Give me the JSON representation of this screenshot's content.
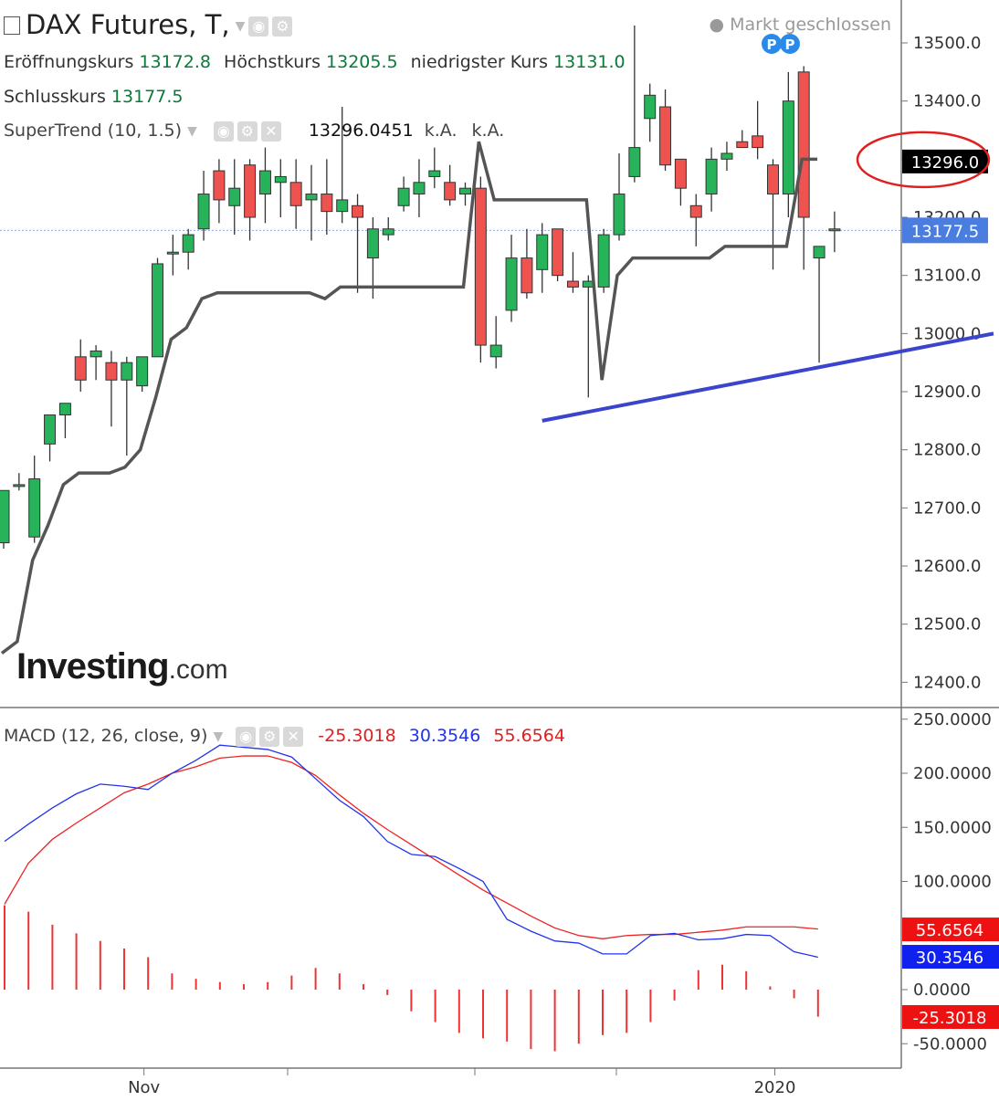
{
  "header": {
    "title": "DAX Futures, T,",
    "status": "Markt geschlossen",
    "open_label": "Eröffnungskurs",
    "open_value": "13172.8",
    "high_label": "Höchstkurs",
    "high_value": "13205.5",
    "low_label": "niedrigster Kurs",
    "low_value": "13131.0",
    "close_label": "Schlusskurs",
    "close_value": "13177.5"
  },
  "supertrend": {
    "label": "SuperTrend (10, 1.5)",
    "value": "13296.0451",
    "na1": "k.A.",
    "na2": "k.A."
  },
  "macd_legend": {
    "label": "MACD (12, 26, close, 9)",
    "hist": "-25.3018",
    "macd": "30.3546",
    "signal": "55.6564"
  },
  "logo": {
    "main": "Investing",
    "suffix": ".com"
  },
  "colors": {
    "up": "#26b35a",
    "down": "#ef5350",
    "supertrend": "#555555",
    "macd_line": "#2233ee",
    "signal_line": "#ee2222",
    "trendline": "#3a44cc",
    "last_price_tag": "#4a7de0"
  },
  "icons": [
    "collapse-icon",
    "eye-icon",
    "gear-icon",
    "close-icon",
    "pivot-marker"
  ],
  "pivot_markers": [
    "P",
    "P"
  ],
  "chart_data": [
    {
      "type": "candlestick",
      "ylim": [
        12350,
        13570
      ],
      "yticks": [
        "13500.0",
        "13400.0",
        "13300.0",
        "13200.0",
        "13100.0",
        "13000.0",
        "12900.0",
        "12800.0",
        "12700.0",
        "12600.0",
        "12500.0",
        "12400.0"
      ],
      "xticks": [
        {
          "index": 9,
          "label": "Nov"
        },
        {
          "index": 50,
          "label": "2020"
        }
      ],
      "candles": [
        [
          12640,
          12730,
          12630,
          12730
        ],
        [
          12740,
          12760,
          12730,
          12740
        ],
        [
          12650,
          12790,
          12640,
          12750
        ],
        [
          12810,
          12850,
          12780,
          12860
        ],
        [
          12860,
          12880,
          12820,
          12880
        ],
        [
          12960,
          12990,
          12900,
          12920
        ],
        [
          12960,
          12980,
          12920,
          12970
        ],
        [
          12950,
          12970,
          12840,
          12920
        ],
        [
          12920,
          12960,
          12790,
          12950
        ],
        [
          12910,
          12960,
          12900,
          12960
        ],
        [
          12960,
          13130,
          12960,
          13120
        ],
        [
          13140,
          13170,
          13100,
          13140
        ],
        [
          13140,
          13180,
          13110,
          13170
        ],
        [
          13180,
          13280,
          13160,
          13240
        ],
        [
          13280,
          13300,
          13190,
          13230
        ],
        [
          13220,
          13300,
          13170,
          13250
        ],
        [
          13290,
          13300,
          13160,
          13200
        ],
        [
          13240,
          13320,
          13190,
          13280
        ],
        [
          13260,
          13300,
          13200,
          13270
        ],
        [
          13260,
          13300,
          13180,
          13220
        ],
        [
          13230,
          13290,
          13160,
          13240
        ],
        [
          13240,
          13300,
          13170,
          13210
        ],
        [
          13210,
          13390,
          13190,
          13230
        ],
        [
          13220,
          13240,
          13070,
          13200
        ],
        [
          13130,
          13200,
          13060,
          13180
        ],
        [
          13170,
          13200,
          13160,
          13180
        ],
        [
          13220,
          13270,
          13210,
          13250
        ],
        [
          13240,
          13300,
          13200,
          13260
        ],
        [
          13270,
          13320,
          13250,
          13280
        ],
        [
          13260,
          13290,
          13220,
          13230
        ],
        [
          13240,
          13260,
          13220,
          13250
        ],
        [
          13250,
          13270,
          12950,
          12980
        ],
        [
          12960,
          13030,
          12940,
          12980
        ],
        [
          13040,
          13170,
          13020,
          13130
        ],
        [
          13130,
          13180,
          13060,
          13070
        ],
        [
          13110,
          13190,
          13070,
          13170
        ],
        [
          13180,
          13180,
          13090,
          13100
        ],
        [
          13090,
          13140,
          13070,
          13080
        ],
        [
          13080,
          13100,
          12890,
          13090
        ],
        [
          13080,
          13180,
          13070,
          13170
        ],
        [
          13170,
          13310,
          13160,
          13240
        ],
        [
          13270,
          13530,
          13260,
          13320
        ],
        [
          13370,
          13430,
          13330,
          13410
        ],
        [
          13390,
          13420,
          13280,
          13290
        ],
        [
          13300,
          13300,
          13220,
          13250
        ],
        [
          13220,
          13240,
          13150,
          13200
        ],
        [
          13240,
          13320,
          13210,
          13300
        ],
        [
          13300,
          13330,
          13280,
          13310
        ],
        [
          13330,
          13350,
          13330,
          13320
        ],
        [
          13340,
          13400,
          13300,
          13320
        ],
        [
          13290,
          13300,
          13110,
          13240
        ],
        [
          13240,
          13450,
          13200,
          13400
        ],
        [
          13450,
          13460,
          13110,
          13200
        ],
        [
          13130,
          13140,
          12950,
          13150
        ],
        [
          13180,
          13210,
          13140,
          13180
        ]
      ],
      "supertrend": [
        12450,
        12470,
        12610,
        12670,
        12740,
        12760,
        12760,
        12760,
        12770,
        12800,
        12890,
        12990,
        13010,
        13060,
        13070,
        13070,
        13070,
        13070,
        13070,
        13070,
        13070,
        13060,
        13080,
        13080,
        13080,
        13080,
        13080,
        13080,
        13080,
        13080,
        13080,
        13330,
        13230,
        13230,
        13230,
        13230,
        13230,
        13230,
        13230,
        12920,
        13100,
        13130,
        13130,
        13130,
        13130,
        13130,
        13130,
        13150,
        13150,
        13150,
        13150,
        13150,
        13300,
        13300
      ],
      "trendline": [
        [
          35,
          12850
        ],
        [
          65,
          13000
        ]
      ],
      "last_price": "13177.5",
      "supertrend_tag": "13296.0"
    },
    {
      "type": "macd",
      "ylim": [
        -75,
        260
      ],
      "yticks": [
        "250.0000",
        "200.0000",
        "150.0000",
        "100.0000",
        "0.0000",
        "-50.0000"
      ],
      "macd_line": [
        137,
        153,
        168,
        181,
        190,
        188,
        185,
        200,
        212,
        226,
        224,
        222,
        215,
        195,
        175,
        160,
        137,
        125,
        123,
        112,
        100,
        65,
        54,
        45,
        43,
        33,
        33,
        50,
        52,
        46,
        47,
        51,
        50,
        35,
        30
      ],
      "signal_line": [
        79,
        117,
        139,
        154,
        168,
        182,
        190,
        200,
        206,
        214,
        216,
        216,
        210,
        198,
        180,
        163,
        148,
        134,
        120,
        106,
        92,
        80,
        68,
        57,
        50,
        47,
        50,
        51,
        51,
        53,
        55,
        58,
        58,
        58,
        56
      ],
      "histogram": [
        78,
        72,
        60,
        52,
        45,
        38,
        30,
        15,
        10,
        7,
        5,
        7,
        13,
        20,
        15,
        5,
        -5,
        -20,
        -30,
        -40,
        -45,
        -48,
        -55,
        -57,
        -50,
        -42,
        -40,
        -30,
        -10,
        18,
        23,
        17,
        3,
        -8,
        -25
      ],
      "tags": {
        "signal": "55.6564",
        "macd": "30.3546",
        "hist": "-25.3018"
      }
    }
  ]
}
